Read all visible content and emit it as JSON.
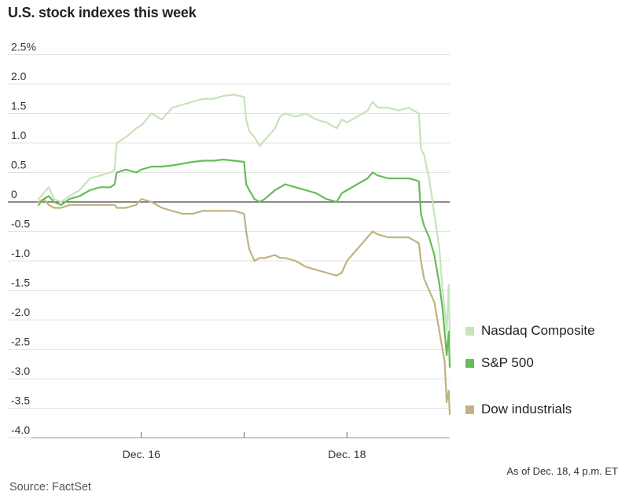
{
  "title": "U.S. stock indexes this week",
  "note": "As of Dec. 18, 4 p.m. ET",
  "source": "Source: FactSet",
  "chart_data": {
    "type": "line",
    "title": "U.S. stock indexes this week",
    "ylim": [
      -4.0,
      2.5
    ],
    "yticks": [
      2.5,
      2.0,
      1.5,
      1.0,
      0.5,
      0,
      -0.5,
      -1.0,
      -1.5,
      -2.0,
      -2.5,
      -3.0,
      -3.5,
      -4.0
    ],
    "ytick_labels": [
      "2.5%",
      "2.0",
      "1.5",
      "1.0",
      "0.5",
      "0",
      "-0.5",
      "-1.0",
      "-1.5",
      "-2.0",
      "-2.5",
      "-3.0",
      "-3.5",
      "-4.0"
    ],
    "x_range": [
      0,
      4
    ],
    "xticks": [
      {
        "x": 1,
        "label": "Dec. 16"
      },
      {
        "x": 2,
        "label": ""
      },
      {
        "x": 3,
        "label": "Dec. 18"
      }
    ],
    "grid": true,
    "legend_position": "right",
    "series": [
      {
        "name": "Nasdaq Composite",
        "color": "#c7e3bb",
        "points": [
          [
            0,
            0.05
          ],
          [
            0.05,
            0.15
          ],
          [
            0.1,
            0.25
          ],
          [
            0.15,
            0.05
          ],
          [
            0.22,
            0.0
          ],
          [
            0.3,
            0.1
          ],
          [
            0.4,
            0.2
          ],
          [
            0.5,
            0.4
          ],
          [
            0.6,
            0.45
          ],
          [
            0.7,
            0.5
          ],
          [
            0.74,
            0.55
          ],
          [
            0.76,
            1.0
          ],
          [
            0.85,
            1.1
          ],
          [
            0.95,
            1.25
          ],
          [
            1.0,
            1.3
          ],
          [
            1.1,
            1.5
          ],
          [
            1.2,
            1.4
          ],
          [
            1.3,
            1.6
          ],
          [
            1.4,
            1.65
          ],
          [
            1.5,
            1.7
          ],
          [
            1.6,
            1.75
          ],
          [
            1.7,
            1.75
          ],
          [
            1.8,
            1.8
          ],
          [
            1.9,
            1.82
          ],
          [
            2.0,
            1.78
          ],
          [
            2.02,
            1.4
          ],
          [
            2.05,
            1.2
          ],
          [
            2.1,
            1.1
          ],
          [
            2.15,
            0.95
          ],
          [
            2.2,
            1.05
          ],
          [
            2.3,
            1.25
          ],
          [
            2.35,
            1.45
          ],
          [
            2.4,
            1.5
          ],
          [
            2.5,
            1.45
          ],
          [
            2.6,
            1.5
          ],
          [
            2.7,
            1.4
          ],
          [
            2.8,
            1.35
          ],
          [
            2.9,
            1.25
          ],
          [
            2.95,
            1.4
          ],
          [
            3.0,
            1.35
          ],
          [
            3.1,
            1.45
          ],
          [
            3.2,
            1.55
          ],
          [
            3.25,
            1.7
          ],
          [
            3.3,
            1.6
          ],
          [
            3.4,
            1.6
          ],
          [
            3.5,
            1.55
          ],
          [
            3.6,
            1.6
          ],
          [
            3.65,
            1.55
          ],
          [
            3.7,
            1.5
          ],
          [
            3.72,
            0.9
          ],
          [
            3.75,
            0.8
          ],
          [
            3.8,
            0.4
          ],
          [
            3.85,
            -0.2
          ],
          [
            3.9,
            -0.8
          ],
          [
            3.93,
            -1.5
          ],
          [
            3.95,
            -1.8
          ],
          [
            3.97,
            -2.2
          ],
          [
            3.99,
            -1.4
          ],
          [
            4.0,
            -2.3
          ]
        ]
      },
      {
        "name": "S&P 500",
        "color": "#64bd56",
        "points": [
          [
            0,
            -0.05
          ],
          [
            0.05,
            0.05
          ],
          [
            0.1,
            0.1
          ],
          [
            0.15,
            0.0
          ],
          [
            0.22,
            -0.05
          ],
          [
            0.3,
            0.05
          ],
          [
            0.4,
            0.1
          ],
          [
            0.5,
            0.2
          ],
          [
            0.6,
            0.25
          ],
          [
            0.7,
            0.25
          ],
          [
            0.74,
            0.3
          ],
          [
            0.76,
            0.5
          ],
          [
            0.85,
            0.55
          ],
          [
            0.95,
            0.5
          ],
          [
            1.0,
            0.55
          ],
          [
            1.1,
            0.6
          ],
          [
            1.2,
            0.6
          ],
          [
            1.3,
            0.62
          ],
          [
            1.4,
            0.65
          ],
          [
            1.5,
            0.68
          ],
          [
            1.6,
            0.7
          ],
          [
            1.7,
            0.7
          ],
          [
            1.8,
            0.72
          ],
          [
            1.9,
            0.7
          ],
          [
            2.0,
            0.68
          ],
          [
            2.02,
            0.3
          ],
          [
            2.05,
            0.2
          ],
          [
            2.1,
            0.05
          ],
          [
            2.15,
            0.0
          ],
          [
            2.2,
            0.05
          ],
          [
            2.3,
            0.2
          ],
          [
            2.35,
            0.25
          ],
          [
            2.4,
            0.3
          ],
          [
            2.5,
            0.25
          ],
          [
            2.6,
            0.2
          ],
          [
            2.7,
            0.15
          ],
          [
            2.8,
            0.05
          ],
          [
            2.9,
            0.0
          ],
          [
            2.95,
            0.15
          ],
          [
            3.0,
            0.2
          ],
          [
            3.1,
            0.3
          ],
          [
            3.2,
            0.4
          ],
          [
            3.25,
            0.5
          ],
          [
            3.3,
            0.45
          ],
          [
            3.4,
            0.4
          ],
          [
            3.5,
            0.4
          ],
          [
            3.6,
            0.4
          ],
          [
            3.65,
            0.38
          ],
          [
            3.7,
            0.35
          ],
          [
            3.72,
            -0.2
          ],
          [
            3.75,
            -0.4
          ],
          [
            3.8,
            -0.6
          ],
          [
            3.85,
            -0.9
          ],
          [
            3.9,
            -1.4
          ],
          [
            3.93,
            -1.8
          ],
          [
            3.95,
            -2.2
          ],
          [
            3.97,
            -2.6
          ],
          [
            3.99,
            -2.2
          ],
          [
            4.0,
            -2.8
          ]
        ]
      },
      {
        "name": "Dow industrials",
        "color": "#bfb47f",
        "points": [
          [
            0,
            0.0
          ],
          [
            0.05,
            0.05
          ],
          [
            0.1,
            -0.05
          ],
          [
            0.15,
            -0.1
          ],
          [
            0.22,
            -0.1
          ],
          [
            0.3,
            -0.05
          ],
          [
            0.4,
            -0.05
          ],
          [
            0.5,
            -0.05
          ],
          [
            0.6,
            -0.05
          ],
          [
            0.7,
            -0.05
          ],
          [
            0.74,
            -0.05
          ],
          [
            0.76,
            -0.1
          ],
          [
            0.85,
            -0.1
          ],
          [
            0.95,
            -0.05
          ],
          [
            1.0,
            0.05
          ],
          [
            1.1,
            0.0
          ],
          [
            1.2,
            -0.1
          ],
          [
            1.3,
            -0.15
          ],
          [
            1.4,
            -0.2
          ],
          [
            1.5,
            -0.2
          ],
          [
            1.6,
            -0.15
          ],
          [
            1.7,
            -0.15
          ],
          [
            1.8,
            -0.15
          ],
          [
            1.9,
            -0.15
          ],
          [
            2.0,
            -0.2
          ],
          [
            2.02,
            -0.5
          ],
          [
            2.05,
            -0.8
          ],
          [
            2.1,
            -1.0
          ],
          [
            2.15,
            -0.95
          ],
          [
            2.2,
            -0.95
          ],
          [
            2.3,
            -0.9
          ],
          [
            2.35,
            -0.95
          ],
          [
            2.4,
            -0.95
          ],
          [
            2.5,
            -1.0
          ],
          [
            2.6,
            -1.1
          ],
          [
            2.7,
            -1.15
          ],
          [
            2.8,
            -1.2
          ],
          [
            2.9,
            -1.25
          ],
          [
            2.95,
            -1.2
          ],
          [
            3.0,
            -1.0
          ],
          [
            3.1,
            -0.8
          ],
          [
            3.2,
            -0.6
          ],
          [
            3.25,
            -0.5
          ],
          [
            3.3,
            -0.55
          ],
          [
            3.4,
            -0.6
          ],
          [
            3.5,
            -0.6
          ],
          [
            3.6,
            -0.6
          ],
          [
            3.65,
            -0.65
          ],
          [
            3.7,
            -0.7
          ],
          [
            3.72,
            -1.0
          ],
          [
            3.75,
            -1.3
          ],
          [
            3.8,
            -1.5
          ],
          [
            3.85,
            -1.7
          ],
          [
            3.9,
            -2.2
          ],
          [
            3.93,
            -2.5
          ],
          [
            3.95,
            -2.7
          ],
          [
            3.97,
            -3.4
          ],
          [
            3.99,
            -3.2
          ],
          [
            4.0,
            -3.6
          ]
        ]
      }
    ]
  }
}
